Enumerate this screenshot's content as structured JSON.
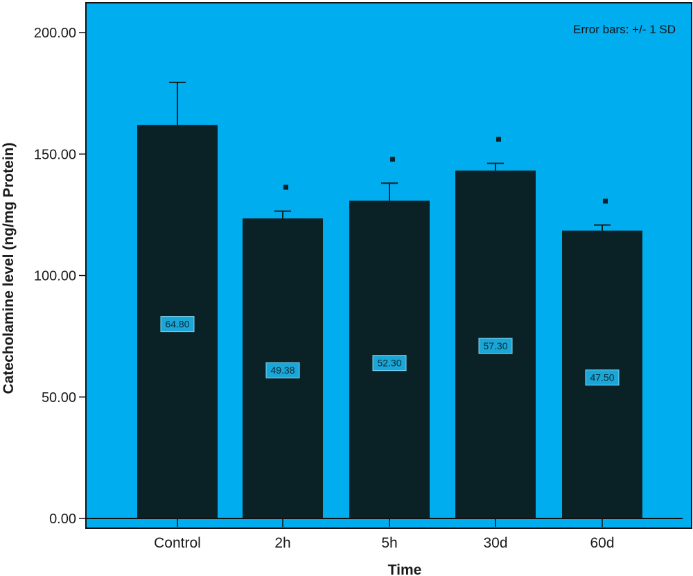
{
  "chart_data": {
    "type": "bar",
    "title": "",
    "xlabel": "Time",
    "ylabel": "Catecholamine level (ng/mg Protein)",
    "categories": [
      "Control",
      "2h",
      "5h",
      "30d",
      "60d"
    ],
    "values": [
      162.0,
      123.5,
      130.8,
      143.2,
      118.5
    ],
    "error_sd": [
      17.5,
      3.0,
      7.2,
      3.0,
      2.3
    ],
    "data_labels": [
      "64.80",
      "49.38",
      "52.30",
      "57.30",
      "47.50"
    ],
    "data_label_values": [
      80,
      61,
      64,
      71,
      58
    ],
    "significance_marker": [
      false,
      true,
      true,
      true,
      true
    ],
    "yticks": [
      "0.00",
      "50.00",
      "100.00",
      "150.00",
      "200.00"
    ],
    "ytick_values": [
      0,
      50,
      100,
      150,
      200
    ],
    "ylim": [
      0,
      212
    ],
    "annotation": "Error bars: +/- 1 SD",
    "grid": false,
    "colors": {
      "plot_background": "#00adef",
      "bar_fill": "#0a2226",
      "label_box": "#1ba6d8",
      "frame": "#111111"
    }
  }
}
